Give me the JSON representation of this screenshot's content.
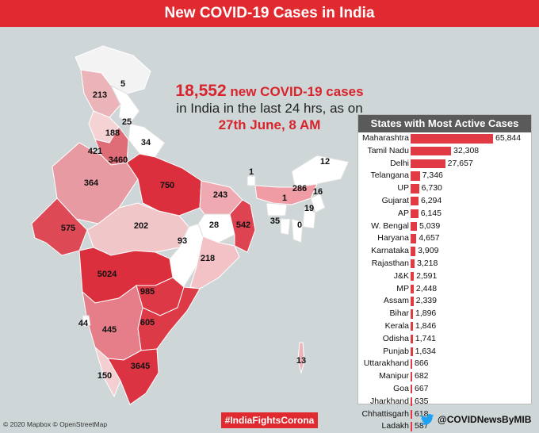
{
  "title": "New COVID-19 Cases in India",
  "headline": {
    "count": "18,552",
    "line1_rest": " new COVID-19 cases",
    "line2": "in India in the last 24 hrs, as on",
    "line3": "27th June, 8 AM"
  },
  "map_labels": {
    "ladakh": "5",
    "jk": "213",
    "hp": "25",
    "punjab": "188",
    "uttarakhand": "34",
    "haryana": "421",
    "delhi": "3460",
    "rajasthan": "364",
    "up": "750",
    "bihar": "243",
    "sikkim": "1",
    "arunachal": "12",
    "assam": "286",
    "meghalaya": "1",
    "nagaland": "16",
    "manipur": "19",
    "mizoram": "0",
    "tripura": "35",
    "gujarat": "575",
    "mp": "202",
    "jharkhand": "28",
    "westbengal": "542",
    "chhattisgarh": "93",
    "odisha": "218",
    "maharashtra": "5024",
    "telangana": "985",
    "goa": "44",
    "karnataka": "445",
    "ap": "605",
    "kerala": "150",
    "tamilnadu": "3645",
    "andaman": "13"
  },
  "chart_data": {
    "type": "bar",
    "title": "States with Most Active Cases",
    "categories": [
      "Maharashtra",
      "Tamil Nadu",
      "Delhi",
      "Telangana",
      "UP",
      "Gujarat",
      "AP",
      "W. Bengal",
      "Haryana",
      "Karnataka",
      "Rajasthan",
      "J&K",
      "MP",
      "Assam",
      "Bihar",
      "Kerala",
      "Odisha",
      "Punjab",
      "Uttarakhand",
      "Manipur",
      "Goa",
      "Jharkhand",
      "Chhattisgarh",
      "Ladakh"
    ],
    "values": [
      65844,
      32308,
      27657,
      7346,
      6730,
      6294,
      6145,
      5039,
      4657,
      3909,
      3218,
      2591,
      2448,
      2339,
      1896,
      1846,
      1741,
      1634,
      866,
      682,
      667,
      635,
      618,
      587
    ],
    "value_labels": [
      "65,844",
      "32,308",
      "27,657",
      "7,346",
      "6,730",
      "6,294",
      "6,145",
      "5,039",
      "4,657",
      "3,909",
      "3,218",
      "2,591",
      "2,448",
      "2,339",
      "1,896",
      "1,846",
      "1,741",
      "1,634",
      "866",
      "682",
      "667",
      "635",
      "618",
      "587"
    ],
    "orientation": "horizontal",
    "bar_color": "#e13a45"
  },
  "footer": {
    "credit": "© 2020 Mapbox © OpenStreetMap",
    "hashtag": "#IndiaFightsCorona",
    "handle": "@COVIDNewsByMIB"
  },
  "colors": {
    "accent": "#e02a2f",
    "header_bg": "#e02a2f",
    "panel_title_bg": "#5a5a5a"
  }
}
